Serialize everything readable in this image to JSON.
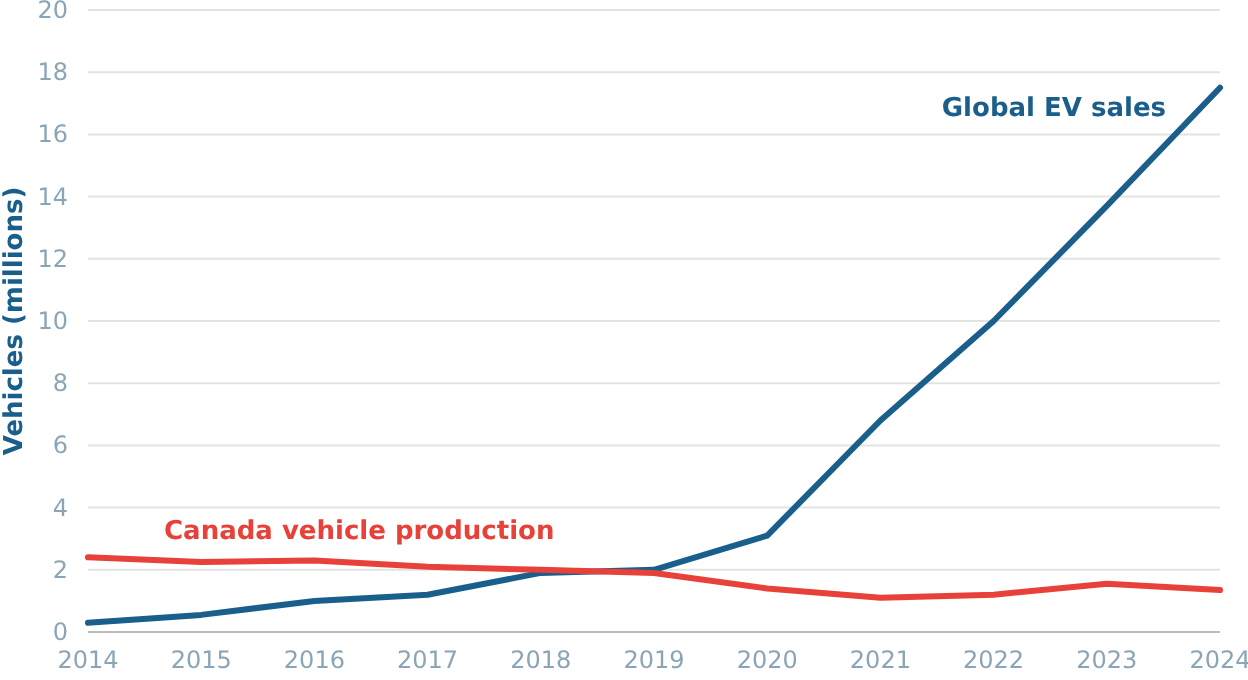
{
  "chart_data": {
    "type": "line",
    "ylabel": "Vehicles (millions)",
    "x": [
      2014,
      2015,
      2016,
      2017,
      2018,
      2019,
      2020,
      2021,
      2022,
      2023,
      2024
    ],
    "series": [
      {
        "name": "Global EV sales",
        "color": "#1a5f8c",
        "values": [
          0.3,
          0.55,
          1.0,
          1.2,
          1.9,
          2.0,
          3.1,
          6.8,
          10.0,
          13.7,
          17.5
        ]
      },
      {
        "name": "Canada vehicle production",
        "color": "#e8413a",
        "values": [
          2.4,
          2.25,
          2.3,
          2.1,
          2.0,
          1.9,
          1.4,
          1.1,
          1.2,
          1.55,
          1.35
        ]
      }
    ],
    "xlim": [
      2014,
      2024
    ],
    "xticks": [
      2014,
      2015,
      2016,
      2017,
      2018,
      2019,
      2020,
      2021,
      2022,
      2023,
      2024
    ],
    "ylim": [
      0,
      20
    ],
    "yticks": [
      0,
      2,
      4,
      6,
      8,
      10,
      12,
      14,
      16,
      18,
      20
    ],
    "grid": "y",
    "marker": "none",
    "line_style": "solid"
  }
}
